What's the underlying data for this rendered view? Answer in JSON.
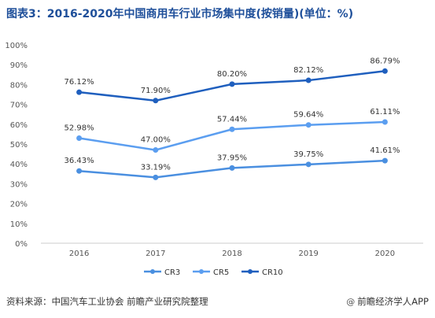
{
  "title": "图表3：2016-2020年中国商用车行业市场集中度(按销量)(单位：%)",
  "footer": {
    "source": "资料来源：中国汽车工业协会 前瞻产业研究院整理",
    "brand": "前瞻经济学人APP",
    "brand_icon": "at-icon"
  },
  "chart_data": {
    "type": "line",
    "categories": [
      "2016",
      "2017",
      "2018",
      "2019",
      "2020"
    ],
    "series": [
      {
        "name": "CR3",
        "values": [
          36.43,
          33.19,
          37.95,
          39.75,
          41.61
        ],
        "color": "#4a8fe0"
      },
      {
        "name": "CR5",
        "values": [
          52.98,
          47.0,
          57.44,
          59.64,
          61.11
        ],
        "color": "#5b9ef0"
      },
      {
        "name": "CR10",
        "values": [
          76.12,
          71.9,
          80.2,
          82.12,
          86.79
        ],
        "color": "#1f5fbe"
      }
    ],
    "ylim": [
      0,
      100
    ],
    "yticks": [
      "0%",
      "10%",
      "20%",
      "30%",
      "40%",
      "50%",
      "60%",
      "70%",
      "80%",
      "90%",
      "100%"
    ],
    "label_suffix": "%",
    "grid": false,
    "legend_position": "bottom"
  }
}
